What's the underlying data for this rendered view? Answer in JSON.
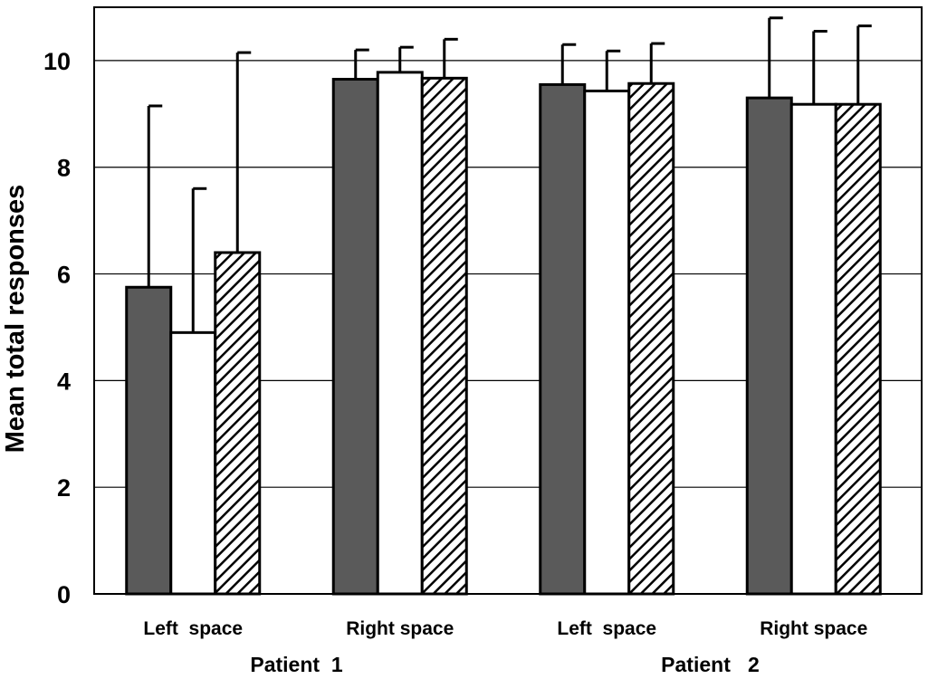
{
  "chart_data": {
    "type": "bar",
    "title": "",
    "ylabel": "Mean total responses",
    "xlabel": "",
    "ylim": [
      0,
      11
    ],
    "yticks": [
      0,
      2,
      4,
      6,
      8,
      10
    ],
    "grid": "horizontal",
    "categories": [
      "Left  space",
      "Right space",
      "Left  space",
      "Right space"
    ],
    "groups": [
      {
        "label": "Patient  1",
        "categories": [
          0,
          1
        ]
      },
      {
        "label": "Patient   2",
        "categories": [
          2,
          3
        ]
      }
    ],
    "series": [
      {
        "style": "solid-dark",
        "fill": "#5a5a5a",
        "values": [
          5.75,
          9.65,
          9.55,
          9.3
        ],
        "errors": [
          3.4,
          0.55,
          0.75,
          1.5
        ]
      },
      {
        "style": "white",
        "fill": "#ffffff",
        "values": [
          4.9,
          9.78,
          9.43,
          9.18
        ],
        "errors": [
          2.7,
          0.47,
          0.75,
          1.37
        ]
      },
      {
        "style": "hatched",
        "fill": "#ffffff",
        "values": [
          6.4,
          9.67,
          9.57,
          9.18
        ],
        "errors": [
          3.75,
          0.73,
          0.75,
          1.47
        ]
      }
    ]
  }
}
